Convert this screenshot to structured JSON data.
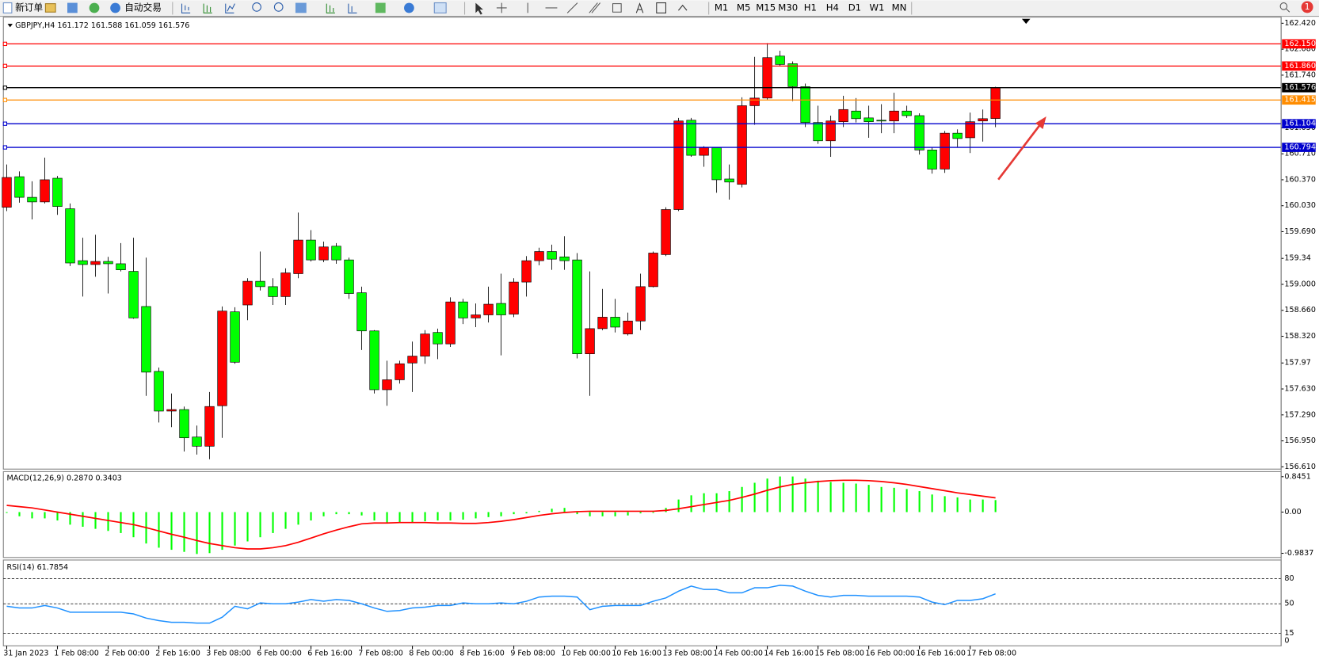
{
  "toolbar": {
    "new_order": "新订单",
    "auto_trading": "自动交易",
    "timeframes": [
      "M1",
      "M5",
      "M15",
      "M30",
      "H1",
      "H4",
      "D1",
      "W1",
      "MN"
    ],
    "notification": "1"
  },
  "chart_data": [
    {
      "type": "candlestick",
      "title": "GBPJPY,H4 161.172 161.588 161.059 161.576",
      "categories": [
        "31 Jan 2023",
        null,
        null,
        null,
        "1 Feb 08:00",
        null,
        null,
        null,
        "2 Feb 00:00",
        null,
        null,
        null,
        "2 Feb 16:00",
        null,
        null,
        null,
        "3 Feb 08:00",
        null,
        null,
        null,
        "6 Feb 00:00",
        null,
        null,
        null,
        "6 Feb 16:00",
        null,
        null,
        null,
        "7 Feb 08:00",
        null,
        null,
        null,
        "8 Feb 00:00",
        null,
        null,
        null,
        "8 Feb 16:00",
        null,
        null,
        null,
        "9 Feb 08:00",
        null,
        null,
        null,
        "10 Feb 00:00",
        null,
        null,
        null,
        "10 Feb 16:00",
        null,
        null,
        null,
        "13 Feb 08:00",
        null,
        null,
        null,
        "14 Feb 00:00",
        null,
        null,
        null,
        "14 Feb 16:00",
        null,
        null,
        null,
        "15 Feb 08:00",
        null,
        null,
        null,
        "16 Feb 00:00",
        null,
        null,
        null,
        "16 Feb 16:00",
        null,
        null,
        null,
        "17 Feb 08:00",
        null,
        null
      ],
      "open": [
        160.01,
        160.41,
        160.14,
        160.08,
        160.39,
        159.99,
        159.31,
        159.26,
        159.3,
        159.27,
        159.17,
        158.71,
        157.86,
        157.34,
        157.36,
        157.0,
        156.88,
        157.41,
        158.64,
        158.73,
        159.04,
        158.97,
        158.84,
        159.14,
        159.58,
        159.32,
        159.5,
        159.32,
        158.89,
        158.39,
        157.62,
        157.75,
        157.97,
        158.06,
        158.37,
        158.22,
        158.77,
        158.56,
        158.6,
        158.75,
        158.61,
        159.03,
        159.31,
        159.43,
        159.36,
        159.32,
        158.09,
        158.42,
        158.57,
        158.35,
        158.52,
        158.97,
        159.39,
        159.98,
        161.15,
        160.69,
        160.79,
        160.38,
        160.31,
        161.34,
        161.44,
        161.99,
        161.89,
        161.59,
        161.12,
        160.88,
        161.13,
        161.27,
        161.18,
        161.15,
        161.14,
        161.27,
        161.21,
        160.76,
        160.51,
        160.98,
        160.92,
        161.14,
        161.172
      ],
      "high": [
        160.57,
        160.48,
        160.35,
        160.66,
        160.42,
        160.06,
        159.61,
        159.65,
        159.36,
        159.54,
        159.61,
        159.35,
        157.91,
        157.57,
        157.4,
        157.15,
        157.59,
        158.71,
        158.7,
        159.08,
        159.43,
        159.08,
        159.21,
        159.94,
        159.71,
        159.56,
        159.54,
        159.35,
        158.97,
        158.4,
        158.0,
        158.0,
        158.25,
        158.4,
        158.42,
        158.83,
        158.81,
        158.75,
        158.97,
        159.14,
        159.08,
        159.37,
        159.48,
        159.52,
        159.63,
        159.41,
        159.17,
        158.94,
        158.81,
        158.63,
        159.14,
        159.43,
        160.01,
        161.18,
        161.18,
        160.81,
        160.8,
        160.57,
        161.45,
        161.98,
        162.16,
        162.06,
        161.92,
        161.63,
        161.34,
        161.21,
        161.47,
        161.44,
        161.34,
        161.36,
        161.51,
        161.34,
        161.24,
        160.79,
        161.01,
        161.03,
        161.25,
        161.29,
        161.588
      ],
      "low": [
        159.96,
        160.07,
        159.85,
        160.06,
        159.91,
        159.24,
        158.84,
        159.1,
        158.88,
        159.17,
        158.55,
        157.54,
        157.19,
        157.13,
        156.81,
        156.77,
        156.71,
        156.99,
        157.96,
        158.53,
        158.92,
        158.73,
        158.73,
        159.08,
        159.3,
        159.29,
        159.27,
        158.81,
        158.14,
        157.57,
        157.41,
        157.7,
        157.59,
        157.96,
        158.02,
        158.18,
        158.48,
        158.44,
        158.5,
        158.07,
        158.57,
        158.84,
        159.25,
        159.19,
        159.19,
        158.03,
        157.54,
        158.4,
        158.37,
        158.33,
        158.4,
        158.96,
        159.37,
        159.96,
        160.67,
        160.54,
        160.2,
        160.11,
        160.27,
        161.09,
        161.42,
        161.86,
        161.4,
        161.06,
        160.84,
        160.67,
        161.06,
        161.12,
        160.92,
        160.98,
        160.98,
        161.18,
        160.7,
        160.45,
        160.46,
        160.79,
        160.72,
        160.87,
        161.059
      ],
      "close": [
        160.4,
        160.14,
        160.08,
        160.37,
        160.02,
        159.28,
        159.26,
        159.3,
        159.27,
        159.19,
        158.56,
        157.85,
        157.34,
        157.36,
        156.99,
        156.88,
        157.4,
        158.65,
        157.98,
        159.04,
        158.97,
        158.84,
        159.15,
        159.58,
        159.32,
        159.49,
        159.32,
        158.88,
        158.39,
        157.62,
        157.75,
        157.96,
        158.06,
        158.35,
        158.22,
        158.77,
        158.56,
        158.6,
        158.74,
        158.6,
        159.03,
        159.31,
        159.43,
        159.33,
        159.31,
        158.09,
        158.42,
        158.57,
        158.44,
        158.52,
        158.97,
        159.41,
        159.98,
        161.14,
        160.69,
        160.79,
        160.37,
        160.34,
        161.34,
        161.44,
        161.97,
        161.88,
        161.59,
        161.12,
        160.88,
        161.14,
        161.29,
        161.17,
        161.13,
        161.14,
        161.27,
        161.21,
        160.76,
        160.51,
        160.98,
        160.91,
        161.13,
        161.17,
        161.576
      ],
      "up_color": "#ff0000",
      "down_color": "#00ff00",
      "ylim": [
        156.58,
        162.5
      ],
      "yticks": [
        {
          "value": 162.42,
          "label": "162.420"
        },
        {
          "value": 162.08,
          "label": "162.080"
        },
        {
          "value": 161.74,
          "label": "161.740"
        },
        {
          "value": 161.05,
          "label": "161.050"
        },
        {
          "value": 160.71,
          "label": "160.710"
        },
        {
          "value": 160.37,
          "label": "160.370"
        },
        {
          "value": 160.03,
          "label": "160.030"
        },
        {
          "value": 159.69,
          "label": "159.690"
        },
        159.34,
        {
          "value": 159,
          "label": "159.000"
        },
        {
          "value": 158.66,
          "label": "158.660"
        },
        {
          "value": 158.32,
          "label": "158.320"
        },
        157.97,
        {
          "value": 157.63,
          "label": "157.630"
        },
        {
          "value": 157.29,
          "label": "157.290"
        },
        {
          "value": 156.95,
          "label": "156.950"
        },
        {
          "value": 156.61,
          "label": "156.610"
        }
      ],
      "levels": [
        {
          "value": 162.15,
          "label": "162.150",
          "color": "#ff0000"
        },
        {
          "value": 161.86,
          "label": "161.860",
          "color": "#ff0000"
        },
        {
          "value": 161.576,
          "label": "161.576",
          "color": "#000000"
        },
        {
          "value": 161.415,
          "label": "161.415",
          "color": "#ff8c00"
        },
        {
          "value": 161.104,
          "label": "161.104",
          "color": "#0000cd"
        },
        {
          "value": 160.794,
          "label": "160.794",
          "color": "#0000cd"
        }
      ]
    },
    {
      "type": "macd",
      "title": "MACD(12,26,9) 0.2870 0.3403",
      "series": [
        {
          "color": "#00ff00",
          "values": [
            -0.02,
            -0.1,
            -0.15,
            -0.15,
            -0.2,
            -0.3,
            -0.35,
            -0.4,
            -0.45,
            -0.5,
            -0.6,
            -0.75,
            -0.85,
            -0.9,
            -0.95,
            -1.0,
            -0.98,
            -0.9,
            -0.8,
            -0.7,
            -0.6,
            -0.5,
            -0.4,
            -0.3,
            -0.2,
            -0.1,
            -0.05,
            -0.05,
            -0.08,
            -0.2,
            -0.25,
            -0.25,
            -0.25,
            -0.22,
            -0.2,
            -0.2,
            -0.18,
            -0.15,
            -0.12,
            -0.1,
            -0.05,
            -0.03,
            0.03,
            0.08,
            0.1,
            -0.05,
            -0.1,
            -0.1,
            -0.1,
            -0.08,
            -0.03,
            -0.02,
            0.1,
            0.3,
            0.4,
            0.45,
            0.45,
            0.5,
            0.6,
            0.7,
            0.8,
            0.85,
            0.85,
            0.8,
            0.75,
            0.72,
            0.7,
            0.68,
            0.65,
            0.6,
            0.58,
            0.55,
            0.5,
            0.42,
            0.38,
            0.35,
            0.3,
            0.3,
            0.287
          ]
        },
        {
          "color": "#ff0000",
          "values": [
            0.16,
            0.13,
            0.1,
            0.05,
            0.0,
            -0.05,
            -0.1,
            -0.15,
            -0.2,
            -0.25,
            -0.3,
            -0.37,
            -0.45,
            -0.53,
            -0.6,
            -0.68,
            -0.75,
            -0.8,
            -0.85,
            -0.88,
            -0.88,
            -0.85,
            -0.8,
            -0.72,
            -0.62,
            -0.52,
            -0.43,
            -0.35,
            -0.28,
            -0.26,
            -0.26,
            -0.25,
            -0.25,
            -0.25,
            -0.26,
            -0.26,
            -0.27,
            -0.27,
            -0.25,
            -0.22,
            -0.18,
            -0.13,
            -0.08,
            -0.04,
            -0.01,
            0.01,
            0.02,
            0.02,
            0.02,
            0.02,
            0.02,
            0.02,
            0.04,
            0.08,
            0.13,
            0.18,
            0.23,
            0.28,
            0.35,
            0.43,
            0.52,
            0.6,
            0.66,
            0.7,
            0.73,
            0.75,
            0.76,
            0.76,
            0.75,
            0.73,
            0.7,
            0.66,
            0.61,
            0.56,
            0.51,
            0.46,
            0.42,
            0.38,
            0.3403
          ]
        }
      ],
      "ylim": [
        -1.084,
        0.966
      ],
      "yticks": [
        0.8451,
        {
          "value": 0,
          "label": "0.00"
        },
        -0.9837
      ]
    },
    {
      "type": "line",
      "title": "RSI(14) 61.7854",
      "series": [
        {
          "color": "#1e90ff",
          "values": [
            47,
            45,
            45,
            48,
            45,
            40,
            40,
            40,
            40,
            40,
            38,
            33,
            30,
            28,
            28,
            27,
            27,
            34,
            47,
            44,
            51,
            50,
            50,
            52,
            55,
            53,
            55,
            54,
            50,
            45,
            41,
            42,
            45,
            46,
            48,
            48,
            51,
            50,
            50,
            51,
            50,
            53,
            58,
            59,
            59,
            58,
            43,
            47,
            48,
            48,
            48,
            53,
            57,
            65,
            71,
            67,
            67,
            63,
            63,
            69,
            69,
            72,
            71,
            65,
            60,
            58,
            60,
            60,
            59,
            59,
            59,
            59,
            58,
            52,
            49,
            54,
            54,
            56,
            61.7854
          ]
        }
      ],
      "ylim": [
        0,
        100
      ],
      "yticks": [
        80,
        50,
        15,
        0
      ]
    }
  ]
}
